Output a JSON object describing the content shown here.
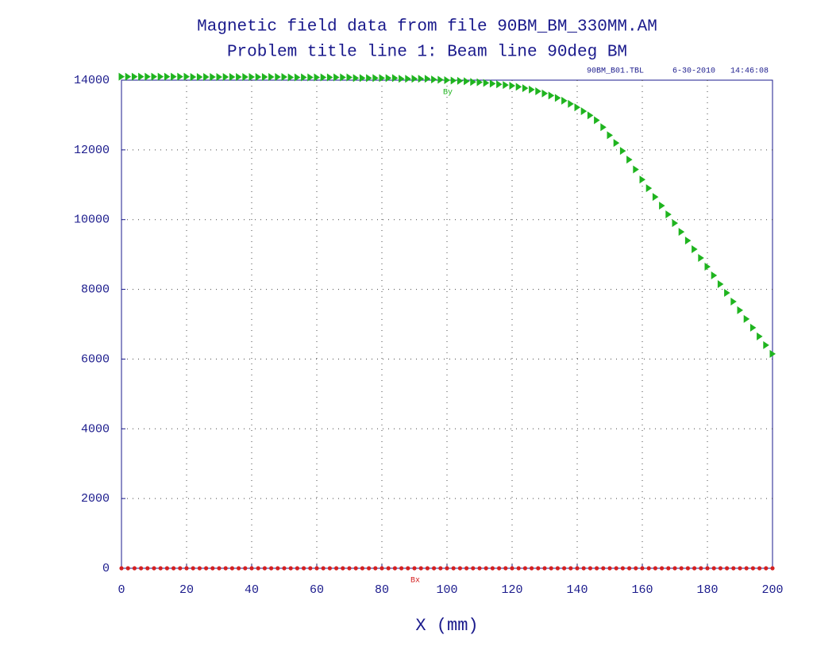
{
  "chart_data": {
    "type": "scatter",
    "title": "Magnetic field data from file 90BM_BM_330MM.AM",
    "subtitle": "Problem title line 1: Beam line 90deg BM",
    "annotations": [
      "90BM_B01.TBL",
      "6-30-2010",
      "14:46:08"
    ],
    "x_label": "X (mm)",
    "xlim": [
      0,
      200
    ],
    "xticks": [
      0,
      20,
      40,
      60,
      80,
      100,
      120,
      140,
      160,
      180,
      200
    ],
    "ylim": [
      0,
      14000
    ],
    "yticks": [
      0,
      2000,
      4000,
      6000,
      8000,
      10000,
      12000,
      14000
    ],
    "grid": true,
    "x": [
      0,
      2,
      4,
      6,
      8,
      10,
      12,
      14,
      16,
      18,
      20,
      22,
      24,
      26,
      28,
      30,
      32,
      34,
      36,
      38,
      40,
      42,
      44,
      46,
      48,
      50,
      52,
      54,
      56,
      58,
      60,
      62,
      64,
      66,
      68,
      70,
      72,
      74,
      76,
      78,
      80,
      82,
      84,
      86,
      88,
      90,
      92,
      94,
      96,
      98,
      100,
      102,
      104,
      106,
      108,
      110,
      112,
      114,
      116,
      118,
      120,
      122,
      124,
      126,
      128,
      130,
      132,
      134,
      136,
      138,
      140,
      142,
      144,
      146,
      148,
      150,
      152,
      154,
      156,
      158,
      160,
      162,
      164,
      166,
      168,
      170,
      172,
      174,
      176,
      178,
      180,
      182,
      184,
      186,
      188,
      190,
      192,
      194,
      196,
      198,
      200
    ],
    "series": [
      {
        "name": "By",
        "color": "#1fb41f",
        "marker": "triangle",
        "values": [
          14100,
          14100,
          14100,
          14100,
          14100,
          14100,
          14100,
          14100,
          14100,
          14100,
          14100,
          14090,
          14090,
          14090,
          14090,
          14090,
          14090,
          14090,
          14090,
          14090,
          14090,
          14090,
          14090,
          14090,
          14090,
          14090,
          14080,
          14080,
          14080,
          14080,
          14080,
          14080,
          14080,
          14080,
          14080,
          14080,
          14060,
          14060,
          14060,
          14060,
          14060,
          14060,
          14060,
          14040,
          14040,
          14040,
          14040,
          14040,
          14020,
          14010,
          14000,
          13990,
          13980,
          13970,
          13950,
          13940,
          13920,
          13900,
          13880,
          13860,
          13840,
          13810,
          13770,
          13730,
          13680,
          13620,
          13560,
          13490,
          13410,
          13320,
          13220,
          13110,
          12990,
          12850,
          12650,
          12420,
          12200,
          11970,
          11720,
          11440,
          11150,
          10900,
          10650,
          10400,
          10150,
          9900,
          9650,
          9400,
          9150,
          8900,
          8650,
          8400,
          8150,
          7900,
          7650,
          7400,
          7150,
          6900,
          6650,
          6400,
          6150
        ]
      },
      {
        "name": "Bx",
        "color": "#d42020",
        "marker": "circle",
        "values": [
          0,
          0,
          0,
          0,
          0,
          0,
          0,
          0,
          0,
          0,
          0,
          0,
          0,
          0,
          0,
          0,
          0,
          0,
          0,
          0,
          0,
          0,
          0,
          0,
          0,
          0,
          0,
          0,
          0,
          0,
          0,
          0,
          0,
          0,
          0,
          0,
          0,
          0,
          0,
          0,
          0,
          0,
          0,
          0,
          0,
          0,
          0,
          0,
          0,
          0,
          0,
          0,
          0,
          0,
          0,
          0,
          0,
          0,
          0,
          0,
          0,
          0,
          0,
          0,
          0,
          0,
          0,
          0,
          0,
          0,
          0,
          0,
          0,
          0,
          0,
          0,
          0,
          0,
          0,
          0,
          0,
          0,
          0,
          0,
          0,
          0,
          0,
          0,
          0,
          0,
          0,
          0,
          0,
          0,
          0,
          0,
          0,
          0,
          0,
          0,
          0
        ]
      }
    ]
  }
}
